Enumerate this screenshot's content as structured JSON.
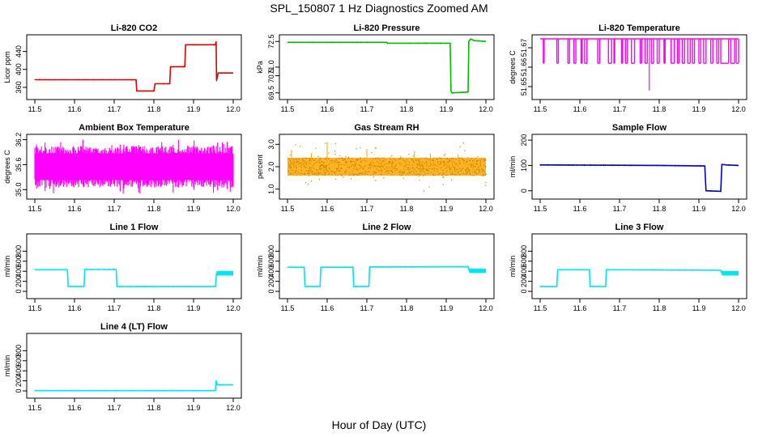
{
  "figure": {
    "title": "SPL_150807  1 Hz Diagnostics Zoomed AM",
    "xlabel": "Hour of Day (UTC)"
  },
  "chart_data": [
    {
      "type": "line",
      "title": "Li-820 CO2",
      "ylabel": "Licor ppm",
      "color": "#dd0000",
      "xlim": [
        11.5,
        12.0
      ],
      "ylim": [
        340,
        470
      ],
      "yticks": [
        "360",
        "400",
        "440"
      ],
      "ytick_values": [
        360,
        400,
        440
      ],
      "xticks": [
        "11.5",
        "11.6",
        "11.7",
        "11.8",
        "11.9",
        "12.0"
      ],
      "points": [
        [
          11.5,
          377
        ],
        [
          11.755,
          377
        ],
        [
          11.757,
          352
        ],
        [
          11.8,
          352
        ],
        [
          11.803,
          368
        ],
        [
          11.84,
          368
        ],
        [
          11.842,
          406
        ],
        [
          11.878,
          406
        ],
        [
          11.88,
          455
        ],
        [
          11.955,
          455
        ],
        [
          11.957,
          462
        ],
        [
          11.958,
          375
        ],
        [
          11.962,
          392
        ],
        [
          12.0,
          392
        ]
      ]
    },
    {
      "type": "line",
      "title": "Li-820 Pressure",
      "ylabel": "kPa",
      "color": "#00bb00",
      "xlim": [
        11.5,
        12.0
      ],
      "ylim": [
        69.3,
        72.7
      ],
      "yticks": [
        "69.5",
        "70.5",
        "71.0",
        "72.5"
      ],
      "ytick_values": [
        69.5,
        70.5,
        71.0,
        72.5
      ],
      "xticks": [
        "11.5",
        "11.6",
        "11.7",
        "11.8",
        "11.9",
        "12.0"
      ],
      "points": [
        [
          11.5,
          72.45
        ],
        [
          11.75,
          72.45
        ],
        [
          11.752,
          72.4
        ],
        [
          11.91,
          72.4
        ],
        [
          11.912,
          69.6
        ],
        [
          11.915,
          69.5
        ],
        [
          11.955,
          69.55
        ],
        [
          11.957,
          72.5
        ],
        [
          11.962,
          72.65
        ],
        [
          11.97,
          72.55
        ],
        [
          12.0,
          72.5
        ]
      ]
    },
    {
      "type": "line",
      "title": "Li-820 Temperature",
      "ylabel": "degrees C",
      "color": "#ff00ff",
      "xlim": [
        11.5,
        12.0
      ],
      "ylim": [
        51.645,
        51.675
      ],
      "yticks": [
        "51.65",
        "51.66",
        "51.67"
      ],
      "ytick_values": [
        51.65,
        51.66,
        51.67
      ],
      "xticks": [
        "11.5",
        "11.6",
        "11.7",
        "11.8",
        "11.9",
        "12.0"
      ],
      "base": 51.675,
      "low": 51.662,
      "spike": [
        11.775,
        51.648
      ],
      "dips": [
        [
          11.508,
          11.51
        ],
        [
          11.542,
          11.546
        ],
        [
          11.57,
          11.574
        ],
        [
          11.585,
          11.59
        ],
        [
          11.603,
          11.606
        ],
        [
          11.612,
          11.618
        ],
        [
          11.645,
          11.65
        ],
        [
          11.672,
          11.68
        ],
        [
          11.686,
          11.688
        ],
        [
          11.705,
          11.708
        ],
        [
          11.715,
          11.72
        ],
        [
          11.73,
          11.738
        ],
        [
          11.752,
          11.756
        ],
        [
          11.764,
          11.77
        ],
        [
          11.78,
          11.786
        ],
        [
          11.795,
          11.8
        ],
        [
          11.812,
          11.815
        ],
        [
          11.83,
          11.838
        ],
        [
          11.846,
          11.85
        ],
        [
          11.858,
          11.864
        ],
        [
          11.872,
          11.878
        ],
        [
          11.884,
          11.889
        ],
        [
          11.9,
          11.905
        ],
        [
          11.912,
          11.918
        ],
        [
          11.93,
          11.935
        ],
        [
          11.945,
          11.95
        ],
        [
          11.955,
          11.975
        ],
        [
          11.98,
          11.99
        ],
        [
          11.994,
          12.0
        ]
      ]
    },
    {
      "type": "line",
      "title": "Ambient Box Temperature",
      "ylabel": "degrees C",
      "color": "#ff00ff",
      "xlim": [
        11.5,
        12.0
      ],
      "ylim": [
        34.85,
        36.25
      ],
      "yticks": [
        "35.0",
        "35.6",
        "36.2"
      ],
      "ytick_values": [
        35.0,
        35.6,
        36.2
      ],
      "band": [
        35.05,
        36.05
      ],
      "xticks": [
        "11.5",
        "11.6",
        "11.7",
        "11.8",
        "11.9",
        "12.0"
      ]
    },
    {
      "type": "scatter",
      "title": "Gas Stream RH",
      "ylabel": "percent",
      "color": "#ffa500",
      "xlim": [
        11.5,
        12.0
      ],
      "ylim": [
        0.7,
        3.3
      ],
      "yticks": [
        "1.0",
        "2.0",
        "3.0"
      ],
      "ytick_values": [
        1.0,
        2.0,
        3.0
      ],
      "band": [
        1.6,
        2.4
      ],
      "xticks": [
        "11.5",
        "11.6",
        "11.7",
        "11.8",
        "11.9",
        "12.0"
      ]
    },
    {
      "type": "line",
      "title": "Sample Flow",
      "ylabel": "ml/min",
      "color": "#0000cc",
      "xlim": [
        11.5,
        12.0
      ],
      "ylim": [
        -20,
        210
      ],
      "yticks": [
        "0",
        "100",
        "200"
      ],
      "ytick_values": [
        0,
        100,
        200
      ],
      "xticks": [
        "11.5",
        "11.6",
        "11.7",
        "11.8",
        "11.9",
        "12.0"
      ],
      "points": [
        [
          11.5,
          102
        ],
        [
          11.8,
          100
        ],
        [
          11.915,
          98
        ],
        [
          11.918,
          0
        ],
        [
          11.955,
          -2
        ],
        [
          11.958,
          104
        ],
        [
          11.97,
          102
        ],
        [
          12.0,
          100
        ]
      ]
    },
    {
      "type": "line",
      "title": "Line 1 Flow",
      "ylabel": "ml/min",
      "color": "#00e5ee",
      "xlim": [
        11.5,
        12.0
      ],
      "ylim": [
        -80,
        1080
      ],
      "yticks": [
        "0",
        "200",
        "400",
        "600",
        "800"
      ],
      "ytick_values": [
        0,
        200,
        400,
        600,
        800
      ],
      "xticks": [
        "11.5",
        "11.6",
        "11.7",
        "11.8",
        "11.9",
        "12.0"
      ],
      "points": [
        [
          11.5,
          430
        ],
        [
          11.582,
          430
        ],
        [
          11.584,
          95
        ],
        [
          11.624,
          95
        ],
        [
          11.626,
          435
        ],
        [
          11.705,
          435
        ],
        [
          11.707,
          95
        ],
        [
          11.955,
          95
        ],
        [
          11.958,
          360
        ],
        [
          12.0,
          360
        ]
      ]
    },
    {
      "type": "line",
      "title": "Line 2 Flow",
      "ylabel": "ml/min",
      "color": "#00e5ee",
      "xlim": [
        11.5,
        12.0
      ],
      "ylim": [
        -80,
        1080
      ],
      "yticks": [
        "0",
        "200",
        "400",
        "600",
        "800"
      ],
      "ytick_values": [
        0,
        200,
        400,
        600,
        800
      ],
      "xticks": [
        "11.5",
        "11.6",
        "11.7",
        "11.8",
        "11.9",
        "12.0"
      ],
      "points": [
        [
          11.5,
          480
        ],
        [
          11.542,
          480
        ],
        [
          11.544,
          95
        ],
        [
          11.582,
          95
        ],
        [
          11.584,
          480
        ],
        [
          11.665,
          480
        ],
        [
          11.667,
          95
        ],
        [
          11.705,
          95
        ],
        [
          11.707,
          485
        ],
        [
          11.955,
          490
        ],
        [
          11.958,
          410
        ],
        [
          12.0,
          410
        ]
      ]
    },
    {
      "type": "line",
      "title": "Line 3 Flow",
      "ylabel": "ml/min",
      "color": "#00e5ee",
      "xlim": [
        11.5,
        12.0
      ],
      "ylim": [
        -80,
        1080
      ],
      "yticks": [
        "0",
        "200",
        "400",
        "600",
        "800"
      ],
      "ytick_values": [
        0,
        200,
        400,
        600,
        800
      ],
      "xticks": [
        "11.5",
        "11.6",
        "11.7",
        "11.8",
        "11.9",
        "12.0"
      ],
      "points": [
        [
          11.5,
          95
        ],
        [
          11.542,
          95
        ],
        [
          11.544,
          430
        ],
        [
          11.624,
          430
        ],
        [
          11.626,
          95
        ],
        [
          11.665,
          95
        ],
        [
          11.667,
          430
        ],
        [
          11.955,
          420
        ],
        [
          11.958,
          360
        ],
        [
          12.0,
          360
        ]
      ]
    },
    {
      "type": "line",
      "title": "Line 4 (LT) Flow",
      "ylabel": "ml/min",
      "color": "#00e5ee",
      "xlim": [
        11.5,
        12.0
      ],
      "ylim": [
        -80,
        1080
      ],
      "yticks": [
        "0",
        "200",
        "400",
        "600",
        "800"
      ],
      "ytick_values": [
        0,
        200,
        400,
        600,
        800
      ],
      "xticks": [
        "11.5",
        "11.6",
        "11.7",
        "11.8",
        "11.9",
        "12.0"
      ],
      "points": [
        [
          11.5,
          5
        ],
        [
          11.955,
          5
        ],
        [
          11.957,
          200
        ],
        [
          11.96,
          120
        ],
        [
          12.0,
          120
        ]
      ]
    }
  ]
}
